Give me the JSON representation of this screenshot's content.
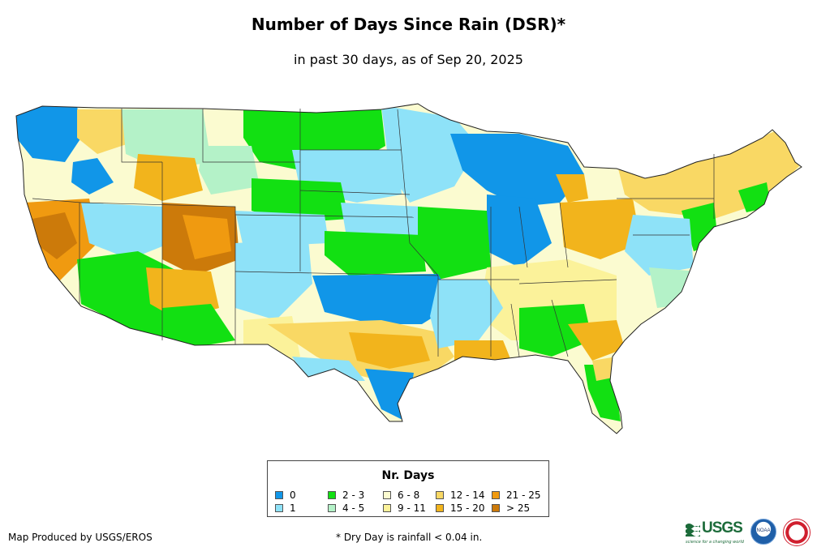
{
  "title": "Number of Days Since Rain (DSR)*",
  "subtitle": "in past 30 days, as of Sep 20, 2025",
  "legend": {
    "title": "Nr. Days",
    "items": [
      {
        "label": "0",
        "color": "#1196e8"
      },
      {
        "label": "1",
        "color": "#8ee2f8"
      },
      {
        "label": "2 - 3",
        "color": "#12e012"
      },
      {
        "label": "4 - 5",
        "color": "#b4f2c8"
      },
      {
        "label": "6 - 8",
        "color": "#fbfbd0"
      },
      {
        "label": "9 - 11",
        "color": "#fbf29a"
      },
      {
        "label": "12 - 14",
        "color": "#f9d864"
      },
      {
        "label": "15 - 20",
        "color": "#f2b41c"
      },
      {
        "label": "21 - 25",
        "color": "#f09a10"
      },
      {
        "label": "> 25",
        "color": "#cc7a0a"
      }
    ]
  },
  "credit": "Map Produced by USGS/EROS",
  "footnote": "* Dry Day is rainfall < 0.04 in.",
  "logos": {
    "usgs": "USGS",
    "usgs_tagline": "science for a changing world",
    "noaa": "NOAA"
  }
}
